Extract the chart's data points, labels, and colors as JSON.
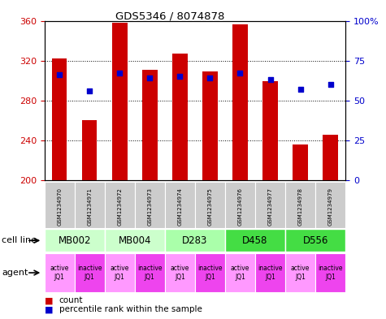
{
  "title": "GDS5346 / 8074878",
  "samples": [
    "GSM1234970",
    "GSM1234971",
    "GSM1234972",
    "GSM1234973",
    "GSM1234974",
    "GSM1234975",
    "GSM1234976",
    "GSM1234977",
    "GSM1234978",
    "GSM1234979"
  ],
  "counts": [
    322,
    260,
    358,
    311,
    327,
    309,
    356,
    299,
    236,
    246
  ],
  "percentile_ranks": [
    66,
    56,
    67,
    64,
    65,
    64,
    67,
    63,
    57,
    60
  ],
  "ymin": 200,
  "ymax": 360,
  "yticks_left": [
    200,
    240,
    280,
    320,
    360
  ],
  "yticks_right": [
    0,
    25,
    50,
    75,
    100
  ],
  "cell_line_groups": [
    {
      "label": "MB002",
      "start": 0,
      "end": 2,
      "color": "#ccffcc"
    },
    {
      "label": "MB004",
      "start": 2,
      "end": 4,
      "color": "#ccffcc"
    },
    {
      "label": "D283",
      "start": 4,
      "end": 6,
      "color": "#aaffaa"
    },
    {
      "label": "D458",
      "start": 6,
      "end": 8,
      "color": "#44dd44"
    },
    {
      "label": "D556",
      "start": 8,
      "end": 10,
      "color": "#44dd44"
    }
  ],
  "agents": [
    "active\nJQ1",
    "inactive\nJQ1",
    "active\nJQ1",
    "inactive\nJQ1",
    "active\nJQ1",
    "inactive\nJQ1",
    "active\nJQ1",
    "inactive\nJQ1",
    "active\nJQ1",
    "inactive\nJQ1"
  ],
  "agent_colors": [
    "#ff99ff",
    "#ee44ee",
    "#ff99ff",
    "#ee44ee",
    "#ff99ff",
    "#ee44ee",
    "#ff99ff",
    "#ee44ee",
    "#ff99ff",
    "#ee44ee"
  ],
  "bar_color": "#cc0000",
  "dot_color": "#0000cc",
  "bar_width": 0.5,
  "sample_bg_color": "#cccccc",
  "left_label_color": "#cc0000",
  "right_label_color": "#0000cc"
}
